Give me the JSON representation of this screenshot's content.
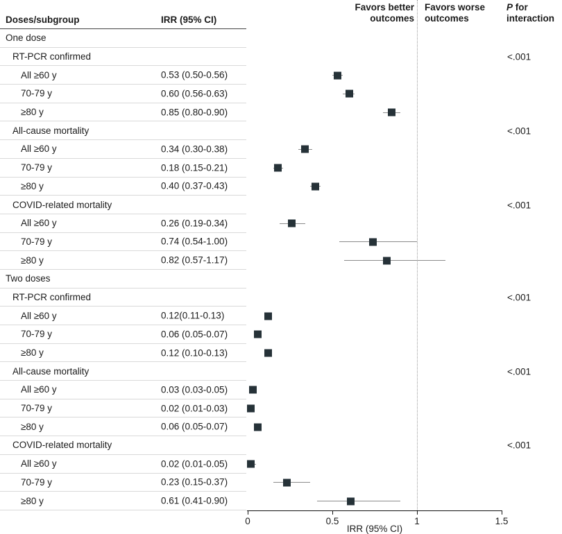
{
  "header": {
    "col_subgroup": "Doses/subgroup",
    "col_irr": "IRR (95% CI)",
    "favors_better": "Favors better outcomes",
    "favors_worse": "Favors worse outcomes",
    "p_italic": "P",
    "p_rest": "for interaction"
  },
  "axis": {
    "min": 0,
    "max": 1.5,
    "reference_line": 1,
    "ticks": [
      0,
      0.5,
      1,
      1.5
    ],
    "tick_labels": [
      "0",
      "0.5",
      "1",
      "1.5"
    ],
    "xlabel": "IRR (95% CI)"
  },
  "colors": {
    "marker": "#263238",
    "ci_line": "#8a8a8a",
    "reference_line": "#9a9a9a",
    "header_rule": "#444444",
    "row_separator": "#d9d9d9",
    "axis_line": "#111111",
    "text": "#1a1a1a"
  },
  "chart_data": {
    "type": "forest",
    "xlabel": "IRR (95% CI)",
    "xlim": [
      0,
      1.5
    ],
    "reference_line": 1,
    "rows": [
      {
        "type": "group",
        "label": "One dose"
      },
      {
        "type": "subheader",
        "label": "RT-PCR confirmed",
        "p": "<.001"
      },
      {
        "type": "data",
        "label": "All ≥60 y",
        "irr": "0.53 (0.50-0.56)",
        "est": 0.53,
        "lo": 0.5,
        "hi": 0.56
      },
      {
        "type": "data",
        "label": "70-79 y",
        "irr": "0.60 (0.56-0.63)",
        "est": 0.6,
        "lo": 0.56,
        "hi": 0.63
      },
      {
        "type": "data",
        "label": "≥80 y",
        "irr": "0.85 (0.80-0.90)",
        "est": 0.85,
        "lo": 0.8,
        "hi": 0.9
      },
      {
        "type": "subheader",
        "label": "All-cause mortality",
        "p": "<.001"
      },
      {
        "type": "data",
        "label": "All ≥60 y",
        "irr": "0.34 (0.30-0.38)",
        "est": 0.34,
        "lo": 0.3,
        "hi": 0.38
      },
      {
        "type": "data",
        "label": "70-79 y",
        "irr": "0.18 (0.15-0.21)",
        "est": 0.18,
        "lo": 0.15,
        "hi": 0.21
      },
      {
        "type": "data",
        "label": "≥80 y",
        "irr": "0.40 (0.37-0.43)",
        "est": 0.4,
        "lo": 0.37,
        "hi": 0.43
      },
      {
        "type": "subheader",
        "label": "COVID-related mortality",
        "p": "<.001"
      },
      {
        "type": "data",
        "label": "All ≥60 y",
        "irr": "0.26 (0.19-0.34)",
        "est": 0.26,
        "lo": 0.19,
        "hi": 0.34
      },
      {
        "type": "data",
        "label": "70-79 y",
        "irr": "0.74 (0.54-1.00)",
        "est": 0.74,
        "lo": 0.54,
        "hi": 1.0
      },
      {
        "type": "data",
        "label": "≥80 y",
        "irr": "0.82 (0.57-1.17)",
        "est": 0.82,
        "lo": 0.57,
        "hi": 1.17
      },
      {
        "type": "group",
        "label": "Two doses"
      },
      {
        "type": "subheader",
        "label": "RT-PCR confirmed",
        "p": "<.001"
      },
      {
        "type": "data",
        "label": "All ≥60 y",
        "irr": "0.12(0.11-0.13)",
        "est": 0.12,
        "lo": 0.11,
        "hi": 0.13
      },
      {
        "type": "data",
        "label": "70-79 y",
        "irr": "0.06 (0.05-0.07)",
        "est": 0.06,
        "lo": 0.05,
        "hi": 0.07
      },
      {
        "type": "data",
        "label": "≥80 y",
        "irr": "0.12 (0.10-0.13)",
        "est": 0.12,
        "lo": 0.1,
        "hi": 0.13
      },
      {
        "type": "subheader",
        "label": "All-cause mortality",
        "p": "<.001"
      },
      {
        "type": "data",
        "label": "All ≥60 y",
        "irr": "0.03 (0.03-0.05)",
        "est": 0.03,
        "lo": 0.03,
        "hi": 0.05
      },
      {
        "type": "data",
        "label": "70-79 y",
        "irr": "0.02 (0.01-0.03)",
        "est": 0.02,
        "lo": 0.01,
        "hi": 0.03
      },
      {
        "type": "data",
        "label": "≥80 y",
        "irr": "0.06 (0.05-0.07)",
        "est": 0.06,
        "lo": 0.05,
        "hi": 0.07
      },
      {
        "type": "subheader",
        "label": "COVID-related mortality",
        "p": "<.001"
      },
      {
        "type": "data",
        "label": "All ≥60 y",
        "irr": "0.02 (0.01-0.05)",
        "est": 0.02,
        "lo": 0.01,
        "hi": 0.05
      },
      {
        "type": "data",
        "label": "70-79 y",
        "irr": "0.23 (0.15-0.37)",
        "est": 0.23,
        "lo": 0.15,
        "hi": 0.37
      },
      {
        "type": "data",
        "label": "≥80 y",
        "irr": "0.61 (0.41-0.90)",
        "est": 0.61,
        "lo": 0.41,
        "hi": 0.9
      }
    ]
  }
}
